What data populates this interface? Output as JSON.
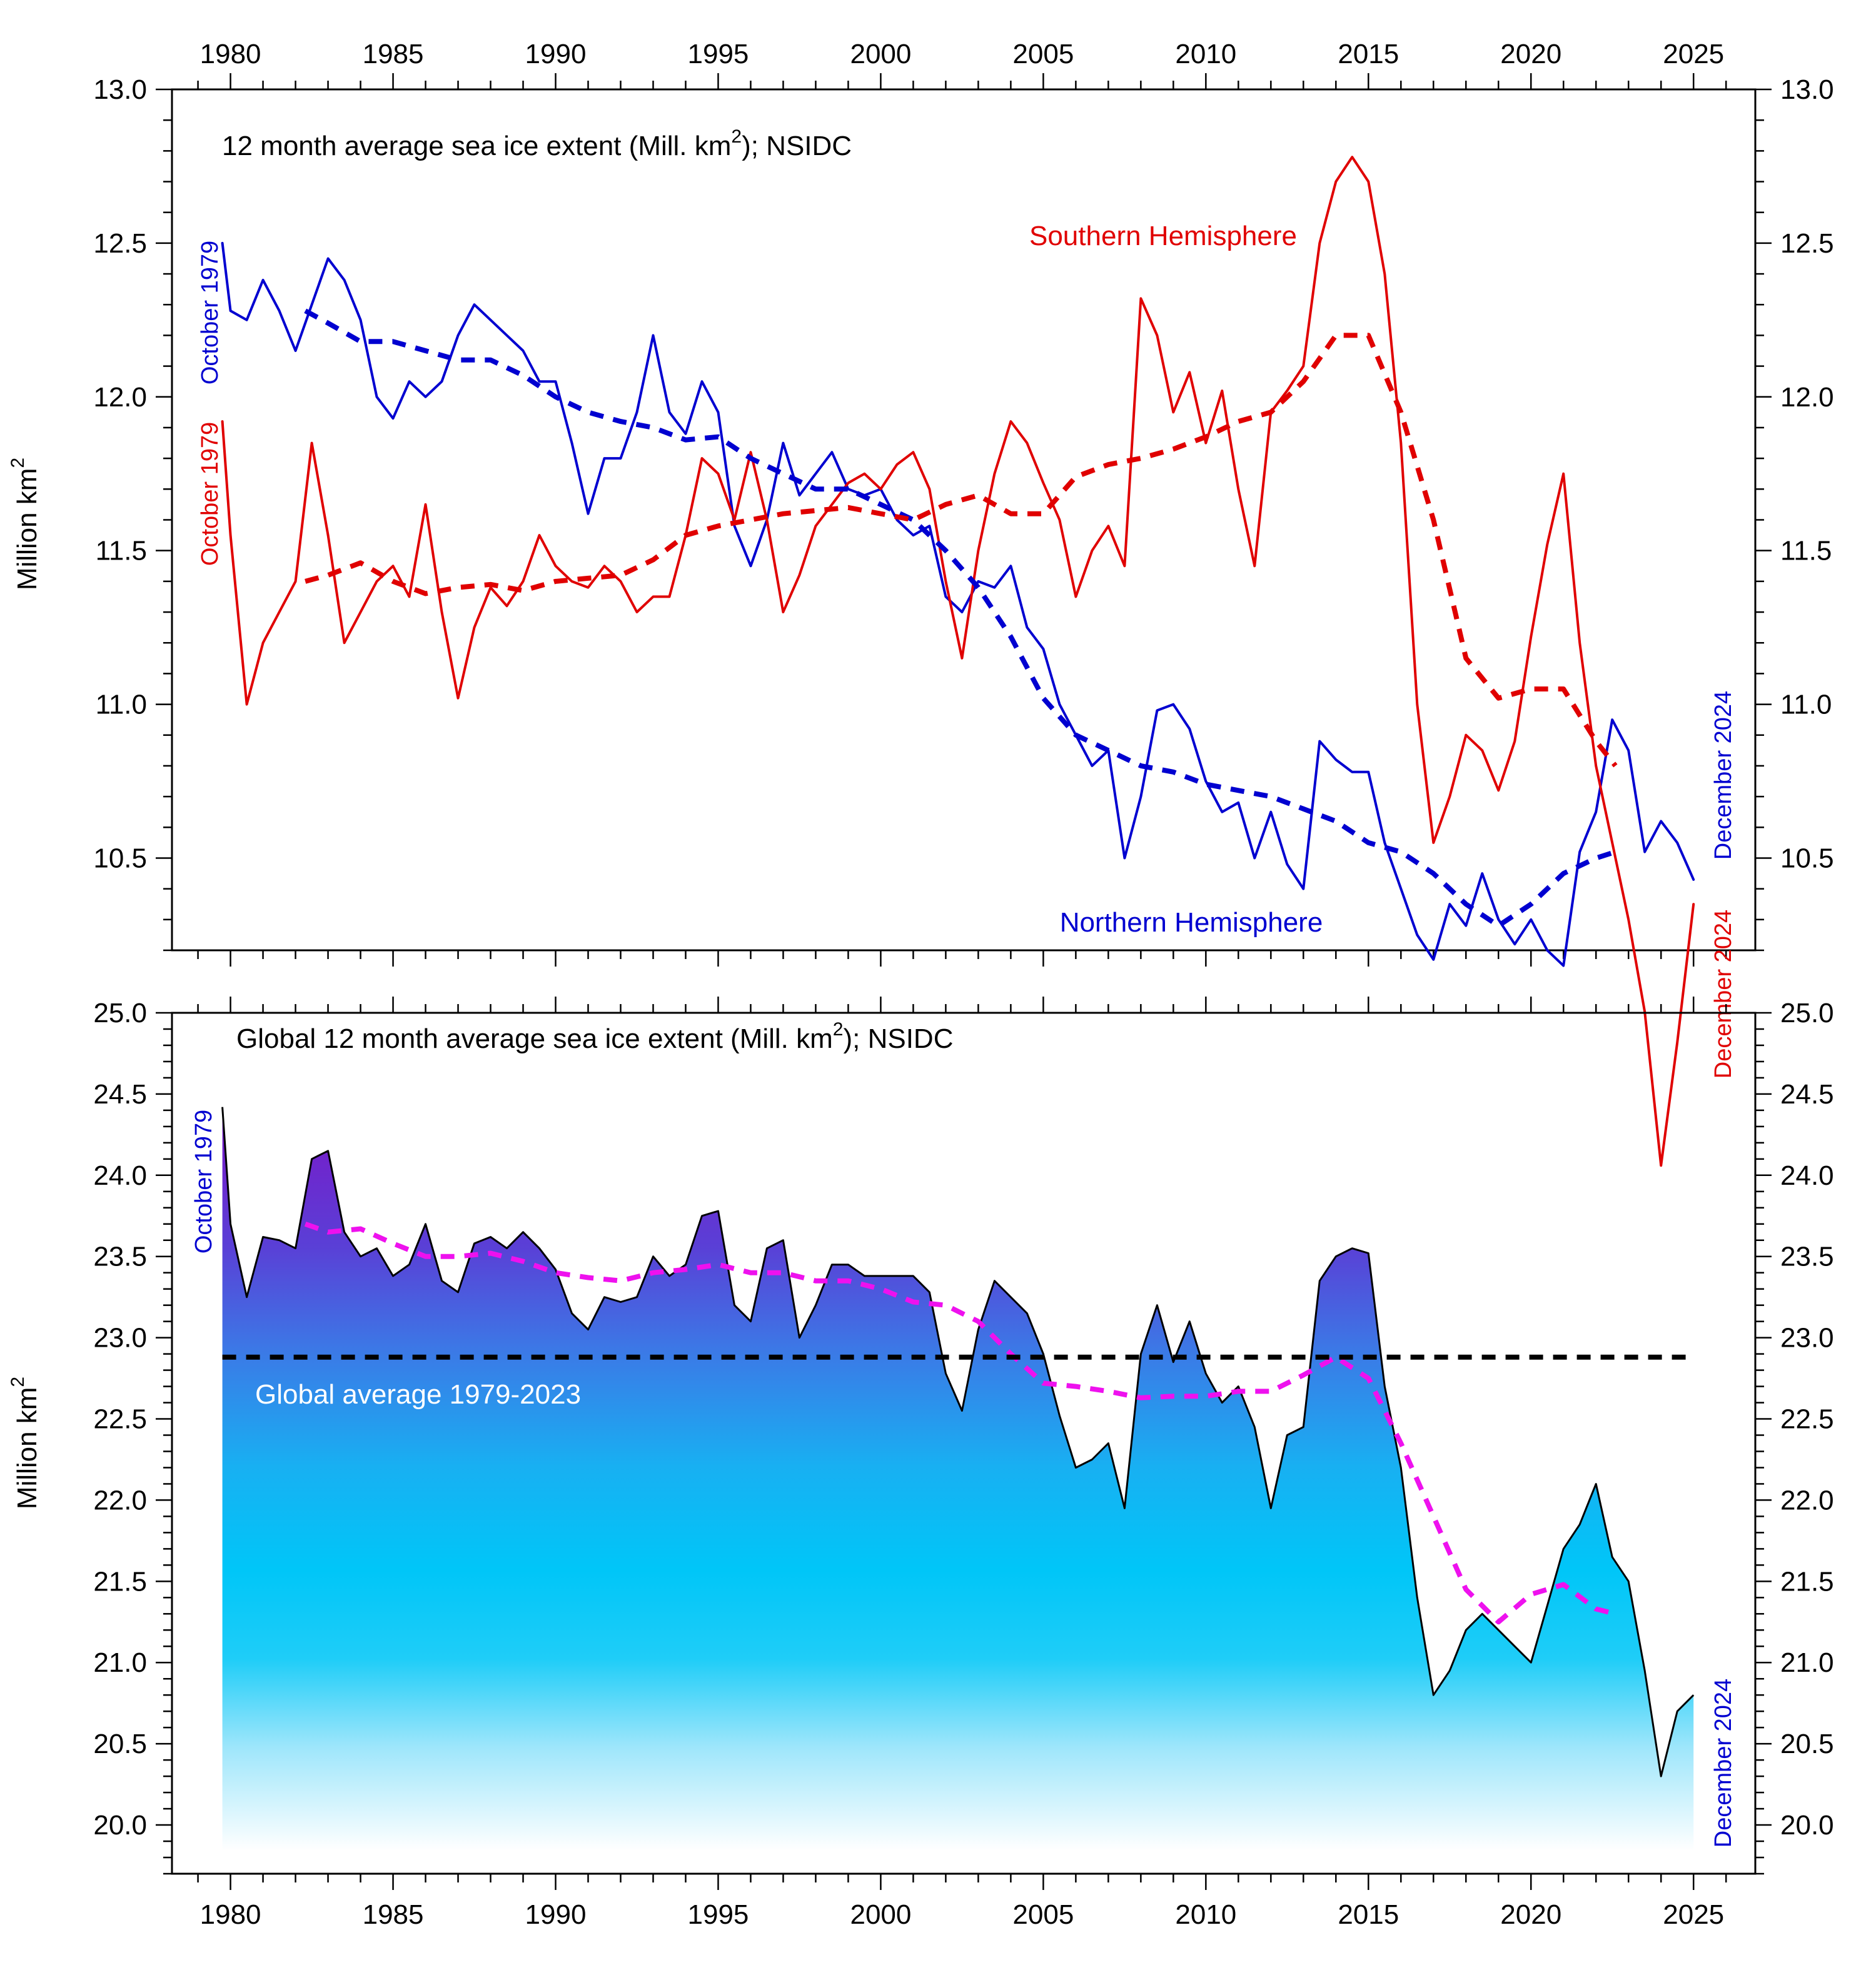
{
  "chart_data": [
    {
      "type": "line",
      "title": "12 month average sea ice extent (Mill. km2); NSIDC",
      "title_main": "12 month average sea ice extent (Mill. km",
      "title_sup": "2",
      "title_tail": "); NSIDC",
      "ylabel_main": "Million km",
      "ylabel_sup": "2",
      "xlim": [
        1978.2,
        2026.9
      ],
      "ylim": [
        10.2,
        13.0
      ],
      "x_ticks": [
        1980,
        1985,
        1990,
        1995,
        2000,
        2005,
        2010,
        2015,
        2020,
        2025
      ],
      "y_ticks": [
        "10.5",
        "11.0",
        "11.5",
        "12.0",
        "12.5",
        "13.0"
      ],
      "grid": false,
      "series": [
        {
          "name": "Northern Hemisphere",
          "color": "#0000d0",
          "style": "solid",
          "x": [
            1979.75,
            1980.0,
            1980.5,
            1981.0,
            1981.5,
            1982.0,
            1982.5,
            1983.0,
            1983.5,
            1984.0,
            1984.5,
            1985.0,
            1985.5,
            1986.0,
            1986.5,
            1987.0,
            1987.5,
            1988.0,
            1988.5,
            1989.0,
            1989.5,
            1990.0,
            1990.5,
            1991.0,
            1991.5,
            1992.0,
            1992.5,
            1993.0,
            1993.5,
            1994.0,
            1994.5,
            1995.0,
            1995.5,
            1996.0,
            1996.5,
            1997.0,
            1997.5,
            1998.0,
            1998.5,
            1999.0,
            1999.5,
            2000.0,
            2000.5,
            2001.0,
            2001.5,
            2002.0,
            2002.5,
            2003.0,
            2003.5,
            2004.0,
            2004.5,
            2005.0,
            2005.5,
            2006.0,
            2006.5,
            2007.0,
            2007.5,
            2008.0,
            2008.5,
            2009.0,
            2009.5,
            2010.0,
            2010.5,
            2011.0,
            2011.5,
            2012.0,
            2012.5,
            2013.0,
            2013.5,
            2014.0,
            2014.5,
            2015.0,
            2015.5,
            2016.0,
            2016.5,
            2017.0,
            2017.5,
            2018.0,
            2018.5,
            2019.0,
            2019.5,
            2020.0,
            2020.5,
            2021.0,
            2021.5,
            2022.0,
            2022.5,
            2023.0,
            2023.5,
            2024.0,
            2024.5,
            2025.0
          ],
          "y": [
            12.5,
            12.28,
            12.25,
            12.38,
            12.28,
            12.15,
            12.3,
            12.45,
            12.38,
            12.25,
            12.0,
            11.93,
            12.05,
            12.0,
            12.05,
            12.2,
            12.3,
            12.25,
            12.2,
            12.15,
            12.05,
            12.05,
            11.85,
            11.62,
            11.8,
            11.8,
            11.95,
            12.2,
            11.95,
            11.88,
            12.05,
            11.95,
            11.58,
            11.45,
            11.6,
            11.85,
            11.68,
            11.75,
            11.82,
            11.7,
            11.68,
            11.7,
            11.6,
            11.55,
            11.58,
            11.35,
            11.3,
            11.4,
            11.38,
            11.45,
            11.25,
            11.18,
            11.0,
            10.9,
            10.8,
            10.85,
            10.5,
            10.7,
            10.98,
            11.0,
            10.92,
            10.75,
            10.65,
            10.68,
            10.5,
            10.65,
            10.48,
            10.4,
            10.88,
            10.82,
            10.78,
            10.78,
            10.55,
            10.4,
            10.25,
            10.17,
            10.35,
            10.28,
            10.45,
            10.3,
            10.22,
            10.3,
            10.2,
            10.15,
            10.52,
            10.65,
            10.95,
            10.85,
            10.52,
            10.62,
            10.55,
            10.43
          ]
        },
        {
          "name": "Southern Hemisphere",
          "color": "#e00000",
          "style": "solid",
          "x": [
            1979.75,
            1980.0,
            1980.5,
            1981.0,
            1981.5,
            1982.0,
            1982.5,
            1983.0,
            1983.5,
            1984.0,
            1984.5,
            1985.0,
            1985.5,
            1986.0,
            1986.5,
            1987.0,
            1987.5,
            1988.0,
            1988.5,
            1989.0,
            1989.5,
            1990.0,
            1990.5,
            1991.0,
            1991.5,
            1992.0,
            1992.5,
            1993.0,
            1993.5,
            1994.0,
            1994.5,
            1995.0,
            1995.5,
            1996.0,
            1996.5,
            1997.0,
            1997.5,
            1998.0,
            1998.5,
            1999.0,
            1999.5,
            2000.0,
            2000.5,
            2001.0,
            2001.5,
            2002.0,
            2002.5,
            2003.0,
            2003.5,
            2004.0,
            2004.5,
            2005.0,
            2005.5,
            2006.0,
            2006.5,
            2007.0,
            2007.5,
            2008.0,
            2008.5,
            2009.0,
            2009.5,
            2010.0,
            2010.5,
            2011.0,
            2011.5,
            2012.0,
            2012.5,
            2013.0,
            2013.5,
            2014.0,
            2014.5,
            2015.0,
            2015.5,
            2016.0,
            2016.5,
            2017.0,
            2017.5,
            2018.0,
            2018.5,
            2019.0,
            2019.5,
            2020.0,
            2020.5,
            2021.0,
            2021.5,
            2022.0,
            2022.5,
            2023.0,
            2023.5,
            2024.0,
            2024.5,
            2025.0
          ],
          "y": [
            11.92,
            11.55,
            11.0,
            11.2,
            11.3,
            11.4,
            11.85,
            11.55,
            11.2,
            11.3,
            11.4,
            11.45,
            11.35,
            11.65,
            11.3,
            11.02,
            11.25,
            11.38,
            11.32,
            11.4,
            11.55,
            11.45,
            11.4,
            11.38,
            11.45,
            11.4,
            11.3,
            11.35,
            11.35,
            11.55,
            11.8,
            11.75,
            11.6,
            11.82,
            11.6,
            11.3,
            11.42,
            11.58,
            11.65,
            11.72,
            11.75,
            11.7,
            11.78,
            11.82,
            11.7,
            11.4,
            11.15,
            11.5,
            11.75,
            11.92,
            11.85,
            11.72,
            11.6,
            11.35,
            11.5,
            11.58,
            11.45,
            12.32,
            12.2,
            11.95,
            12.08,
            11.85,
            12.02,
            11.7,
            11.45,
            11.95,
            12.02,
            12.1,
            12.5,
            12.7,
            12.78,
            12.7,
            12.4,
            11.85,
            11.0,
            10.55,
            10.7,
            10.9,
            10.85,
            10.72,
            10.88,
            11.22,
            11.52,
            11.75,
            11.2,
            10.8,
            10.55,
            10.3,
            10.0,
            9.5,
            9.9,
            10.35
          ]
        },
        {
          "name": "Northern Hemisphere smoothed",
          "color": "#0000d0",
          "style": "dashed",
          "x": [
            1982.3,
            1983,
            1984,
            1985,
            1986,
            1987,
            1988,
            1989,
            1990,
            1991,
            1992,
            1993,
            1994,
            1995,
            1996,
            1997,
            1998,
            1999,
            2000,
            2001,
            2002,
            2003,
            2004,
            2005,
            2006,
            2007,
            2008,
            2009,
            2010,
            2011,
            2012,
            2013,
            2014,
            2015,
            2016,
            2017,
            2018,
            2019,
            2020,
            2021,
            2022,
            2022.6
          ],
          "y": [
            12.28,
            12.24,
            12.18,
            12.18,
            12.15,
            12.12,
            12.12,
            12.07,
            12.0,
            11.95,
            11.92,
            11.9,
            11.86,
            11.87,
            11.8,
            11.75,
            11.7,
            11.7,
            11.65,
            11.6,
            11.5,
            11.38,
            11.22,
            11.02,
            10.9,
            10.85,
            10.8,
            10.78,
            10.74,
            10.72,
            10.7,
            10.66,
            10.62,
            10.55,
            10.52,
            10.45,
            10.35,
            10.28,
            10.35,
            10.45,
            10.5,
            10.52
          ]
        },
        {
          "name": "Southern Hemisphere smoothed",
          "color": "#e00000",
          "style": "dashed",
          "x": [
            1982.3,
            1983,
            1984,
            1985,
            1986,
            1987,
            1988,
            1989,
            1990,
            1991,
            1992,
            1993,
            1994,
            1995,
            1996,
            1997,
            1998,
            1999,
            2000,
            2001,
            2002,
            2003,
            2004,
            2005,
            2006,
            2007,
            2008,
            2009,
            2010,
            2011,
            2012,
            2013,
            2014,
            2015,
            2016,
            2017,
            2018,
            2019,
            2020,
            2021,
            2022,
            2022.6
          ],
          "y": [
            11.4,
            11.42,
            11.46,
            11.4,
            11.36,
            11.38,
            11.39,
            11.37,
            11.4,
            11.41,
            11.42,
            11.47,
            11.55,
            11.58,
            11.6,
            11.62,
            11.63,
            11.64,
            11.62,
            11.6,
            11.65,
            11.68,
            11.62,
            11.62,
            11.74,
            11.78,
            11.8,
            11.83,
            11.87,
            11.92,
            11.95,
            12.05,
            12.2,
            12.2,
            11.95,
            11.6,
            11.15,
            11.02,
            11.05,
            11.05,
            10.88,
            10.8
          ]
        }
      ],
      "annotations": [
        {
          "text": "Southern Hemisphere",
          "x": 2009.0,
          "y": 12.5,
          "color": "#e00000"
        },
        {
          "text": "Northern Hemisphere",
          "x": 2009.6,
          "y": 10.29,
          "color": "#0000d0"
        },
        {
          "text": "October 1979",
          "color": "#0000d0",
          "rotated": true
        },
        {
          "text": "October 1979",
          "color": "#e00000",
          "rotated": true
        },
        {
          "text": "December 2024",
          "color": "#0000d0",
          "rotated": true
        },
        {
          "text": "December 2024",
          "color": "#e00000",
          "rotated": true
        }
      ]
    },
    {
      "type": "area",
      "title": "Global 12 month average sea ice extent (Mill. km2); NSIDC",
      "title_main": "Global 12 month average sea ice extent (Mill. km",
      "title_sup": "2",
      "title_tail": "); NSIDC",
      "ylabel_main": "Million km",
      "ylabel_sup": "2",
      "xlim": [
        1978.2,
        2026.9
      ],
      "ylim": [
        19.7,
        25.0
      ],
      "x_ticks": [
        1980,
        1985,
        1990,
        1995,
        2000,
        2005,
        2010,
        2015,
        2020,
        2025
      ],
      "y_ticks": [
        "20.0",
        "20.5",
        "21.0",
        "21.5",
        "22.0",
        "22.5",
        "23.0",
        "23.5",
        "24.0",
        "24.5",
        "25.0"
      ],
      "grid": false,
      "series": [
        {
          "name": "Global",
          "color": "#000000",
          "style": "filled",
          "x": [
            1979.75,
            1980.0,
            1980.5,
            1981.0,
            1981.5,
            1982.0,
            1982.5,
            1983.0,
            1983.5,
            1984.0,
            1984.5,
            1985.0,
            1985.5,
            1986.0,
            1986.5,
            1987.0,
            1987.5,
            1988.0,
            1988.5,
            1989.0,
            1989.5,
            1990.0,
            1990.5,
            1991.0,
            1991.5,
            1992.0,
            1992.5,
            1993.0,
            1993.5,
            1994.0,
            1994.5,
            1995.0,
            1995.5,
            1996.0,
            1996.5,
            1997.0,
            1997.5,
            1998.0,
            1998.5,
            1999.0,
            1999.5,
            2000.0,
            2000.5,
            2001.0,
            2001.5,
            2002.0,
            2002.5,
            2003.0,
            2003.5,
            2004.0,
            2004.5,
            2005.0,
            2005.5,
            2006.0,
            2006.5,
            2007.0,
            2007.5,
            2008.0,
            2008.5,
            2009.0,
            2009.5,
            2010.0,
            2010.5,
            2011.0,
            2011.5,
            2012.0,
            2012.5,
            2013.0,
            2013.5,
            2014.0,
            2014.5,
            2015.0,
            2015.5,
            2016.0,
            2016.5,
            2017.0,
            2017.5,
            2018.0,
            2018.5,
            2019.0,
            2019.5,
            2020.0,
            2020.5,
            2021.0,
            2021.5,
            2022.0,
            2022.5,
            2023.0,
            2023.5,
            2024.0,
            2024.5,
            2025.0
          ],
          "y": [
            24.42,
            23.7,
            23.25,
            23.62,
            23.6,
            23.55,
            24.1,
            24.15,
            23.65,
            23.5,
            23.55,
            23.38,
            23.45,
            23.7,
            23.35,
            23.28,
            23.58,
            23.62,
            23.55,
            23.65,
            23.55,
            23.42,
            23.15,
            23.05,
            23.25,
            23.22,
            23.25,
            23.5,
            23.38,
            23.45,
            23.75,
            23.78,
            23.2,
            23.1,
            23.55,
            23.6,
            23.0,
            23.2,
            23.45,
            23.45,
            23.38,
            23.38,
            23.38,
            23.38,
            23.28,
            22.78,
            22.55,
            23.05,
            23.35,
            23.25,
            23.15,
            22.9,
            22.52,
            22.2,
            22.25,
            22.35,
            21.95,
            22.9,
            23.2,
            22.85,
            23.1,
            22.78,
            22.6,
            22.7,
            22.45,
            21.95,
            22.4,
            22.45,
            23.35,
            23.5,
            23.55,
            23.52,
            22.7,
            22.2,
            21.4,
            20.8,
            20.95,
            21.2,
            21.3,
            21.2,
            21.1,
            21.0,
            21.35,
            21.7,
            21.85,
            22.1,
            21.65,
            21.5,
            20.95,
            20.3,
            20.7,
            20.8
          ]
        },
        {
          "name": "Global smoothed",
          "color": "#ee11ee",
          "style": "dashed",
          "x": [
            1982.3,
            1983,
            1984,
            1985,
            1986,
            1987,
            1988,
            1989,
            1990,
            1991,
            1992,
            1993,
            1994,
            1995,
            1996,
            1997,
            1998,
            1999,
            2000,
            2001,
            2002,
            2003,
            2004,
            2005,
            2006,
            2007,
            2008,
            2009,
            2010,
            2011,
            2012,
            2013,
            2014,
            2015,
            2016,
            2017,
            2018,
            2019,
            2020,
            2021,
            2022,
            2022.6
          ],
          "y": [
            23.7,
            23.65,
            23.67,
            23.58,
            23.5,
            23.5,
            23.52,
            23.47,
            23.4,
            23.37,
            23.35,
            23.4,
            23.42,
            23.45,
            23.4,
            23.4,
            23.35,
            23.35,
            23.3,
            23.22,
            23.2,
            23.1,
            22.9,
            22.72,
            22.7,
            22.67,
            22.63,
            22.64,
            22.64,
            22.67,
            22.67,
            22.77,
            22.88,
            22.75,
            22.35,
            21.9,
            21.45,
            21.25,
            21.42,
            21.48,
            21.33,
            21.3
          ]
        },
        {
          "name": "Global average 1979-2023",
          "color": "#000000",
          "style": "dashed",
          "x": [
            1979.75,
            2025.0
          ],
          "y": [
            22.88,
            22.88
          ]
        }
      ],
      "annotations": [
        {
          "text": "Global average 1979-2023",
          "color": "#ffffff"
        },
        {
          "text": "October 1979",
          "color": "#0000d0",
          "rotated": true
        },
        {
          "text": "December 2024",
          "color": "#0000d0",
          "rotated": true
        }
      ]
    }
  ]
}
